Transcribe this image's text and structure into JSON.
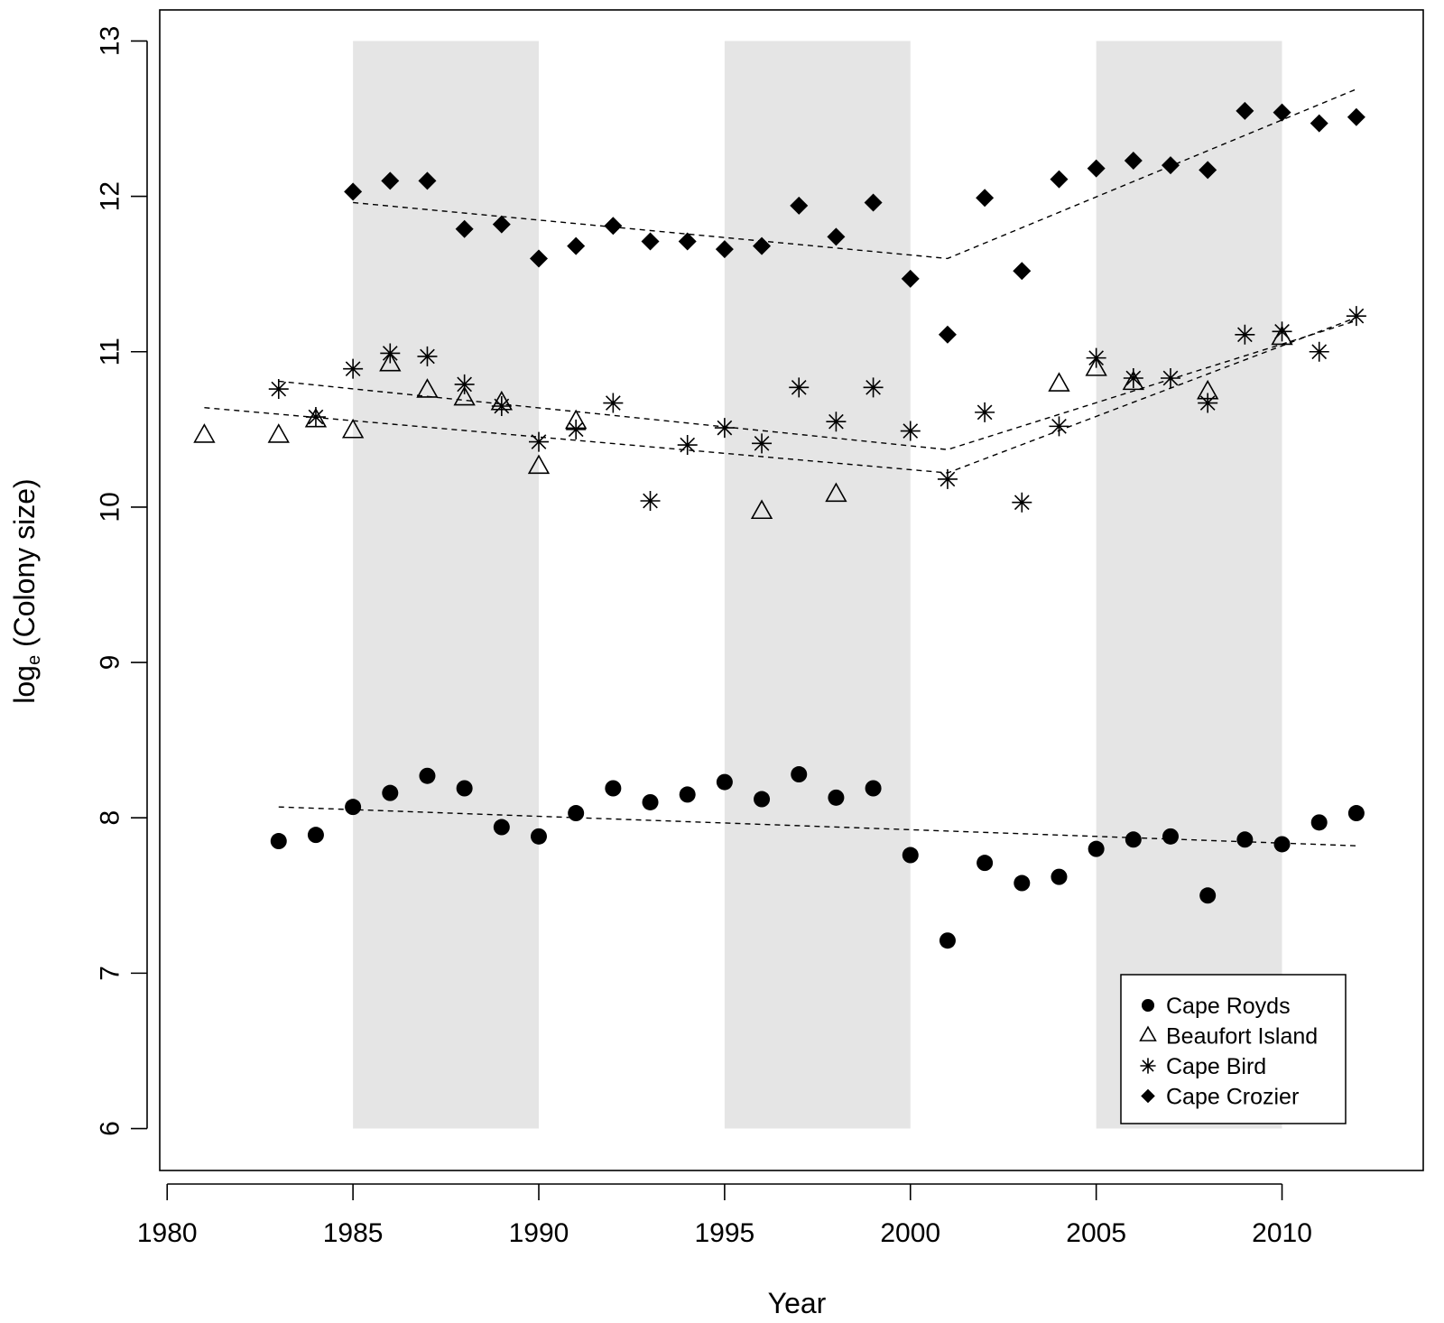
{
  "chart_data": {
    "type": "scatter",
    "title": "",
    "xlabel": "Year",
    "ylabel_main": "log",
    "ylabel_sub": "e",
    "ylabel_rest": " (Colony size)",
    "xlim": [
      1979.8,
      2013.8
    ],
    "ylim": [
      5.73,
      13.2
    ],
    "xticks": [
      1980,
      1985,
      1990,
      1995,
      2000,
      2005,
      2010
    ],
    "xtick_labels": [
      "1980",
      "1985",
      "1990",
      "1995",
      "2000",
      "2005",
      "2010"
    ],
    "yticks": [
      6,
      7,
      8,
      9,
      10,
      11,
      12,
      13
    ],
    "ytick_labels": [
      "6",
      "7",
      "8",
      "9",
      "10",
      "11",
      "12",
      "13"
    ],
    "shaded_bands": [
      {
        "x0": 1985,
        "x1": 1990,
        "y0": 6,
        "y1": 13
      },
      {
        "x0": 1995,
        "x1": 2000,
        "y0": 6,
        "y1": 13
      },
      {
        "x0": 2005,
        "x1": 2010,
        "y0": 6,
        "y1": 13
      }
    ],
    "band_color": "#e5e5e5",
    "legend_position": "bottom-right",
    "series": [
      {
        "name": "Cape Royds",
        "marker": "circle",
        "points": [
          [
            1983,
            7.85
          ],
          [
            1984,
            7.89
          ],
          [
            1985,
            8.07
          ],
          [
            1986,
            8.16
          ],
          [
            1987,
            8.27
          ],
          [
            1988,
            8.19
          ],
          [
            1989,
            7.94
          ],
          [
            1990,
            7.88
          ],
          [
            1991,
            8.03
          ],
          [
            1992,
            8.19
          ],
          [
            1993,
            8.1
          ],
          [
            1994,
            8.15
          ],
          [
            1995,
            8.23
          ],
          [
            1996,
            8.12
          ],
          [
            1997,
            8.28
          ],
          [
            1998,
            8.13
          ],
          [
            1999,
            8.19
          ],
          [
            2000,
            7.76
          ],
          [
            2001,
            7.21
          ],
          [
            2002,
            7.71
          ],
          [
            2003,
            7.58
          ],
          [
            2004,
            7.62
          ],
          [
            2005,
            7.8
          ],
          [
            2006,
            7.86
          ],
          [
            2007,
            7.88
          ],
          [
            2008,
            7.5
          ],
          [
            2009,
            7.86
          ],
          [
            2010,
            7.83
          ],
          [
            2011,
            7.97
          ],
          [
            2012,
            8.03
          ]
        ],
        "trend": [
          [
            1983,
            8.07
          ],
          [
            2012,
            7.82
          ]
        ]
      },
      {
        "name": "Beaufort Island",
        "marker": "triangle",
        "points": [
          [
            1981,
            10.46
          ],
          [
            1983,
            10.46
          ],
          [
            1984,
            10.56
          ],
          [
            1985,
            10.49
          ],
          [
            1986,
            10.92
          ],
          [
            1987,
            10.75
          ],
          [
            1988,
            10.7
          ],
          [
            1989,
            10.67
          ],
          [
            1990,
            10.26
          ],
          [
            1991,
            10.55
          ],
          [
            1996,
            9.97
          ],
          [
            1998,
            10.08
          ],
          [
            2004,
            10.79
          ],
          [
            2005,
            10.89
          ],
          [
            2006,
            10.8
          ],
          [
            2008,
            10.74
          ],
          [
            2010,
            11.09
          ]
        ],
        "trend": [
          [
            1981,
            10.64
          ],
          [
            2001,
            10.22
          ],
          [
            2012,
            11.22
          ]
        ]
      },
      {
        "name": "Cape Bird",
        "marker": "asterisk",
        "points": [
          [
            1983,
            10.76
          ],
          [
            1984,
            10.58
          ],
          [
            1985,
            10.89
          ],
          [
            1986,
            10.99
          ],
          [
            1987,
            10.97
          ],
          [
            1988,
            10.79
          ],
          [
            1989,
            10.65
          ],
          [
            1990,
            10.42
          ],
          [
            1991,
            10.5
          ],
          [
            1992,
            10.67
          ],
          [
            1993,
            10.04
          ],
          [
            1994,
            10.4
          ],
          [
            1995,
            10.51
          ],
          [
            1996,
            10.41
          ],
          [
            1997,
            10.77
          ],
          [
            1998,
            10.55
          ],
          [
            1999,
            10.77
          ],
          [
            2000,
            10.49
          ],
          [
            2001,
            10.18
          ],
          [
            2002,
            10.61
          ],
          [
            2003,
            10.03
          ],
          [
            2004,
            10.52
          ],
          [
            2005,
            10.96
          ],
          [
            2006,
            10.83
          ],
          [
            2007,
            10.83
          ],
          [
            2008,
            10.67
          ],
          [
            2009,
            11.11
          ],
          [
            2010,
            11.13
          ],
          [
            2011,
            11.0
          ],
          [
            2012,
            11.23
          ]
        ],
        "trend": [
          [
            1983,
            10.81
          ],
          [
            2001,
            10.37
          ],
          [
            2012,
            11.2
          ]
        ]
      },
      {
        "name": "Cape Crozier",
        "marker": "diamond",
        "points": [
          [
            1985,
            12.03
          ],
          [
            1986,
            12.1
          ],
          [
            1987,
            12.1
          ],
          [
            1988,
            11.79
          ],
          [
            1989,
            11.82
          ],
          [
            1990,
            11.6
          ],
          [
            1991,
            11.68
          ],
          [
            1992,
            11.81
          ],
          [
            1993,
            11.71
          ],
          [
            1994,
            11.71
          ],
          [
            1995,
            11.66
          ],
          [
            1996,
            11.68
          ],
          [
            1997,
            11.94
          ],
          [
            1998,
            11.74
          ],
          [
            1999,
            11.96
          ],
          [
            2000,
            11.47
          ],
          [
            2001,
            11.11
          ],
          [
            2002,
            11.99
          ],
          [
            2003,
            11.52
          ],
          [
            2004,
            12.11
          ],
          [
            2005,
            12.18
          ],
          [
            2006,
            12.23
          ],
          [
            2007,
            12.2
          ],
          [
            2008,
            12.17
          ],
          [
            2009,
            12.55
          ],
          [
            2010,
            12.54
          ],
          [
            2011,
            12.47
          ],
          [
            2012,
            12.51
          ]
        ],
        "trend": [
          [
            1985,
            11.96
          ],
          [
            2001,
            11.6
          ],
          [
            2012,
            12.69
          ]
        ]
      }
    ]
  }
}
